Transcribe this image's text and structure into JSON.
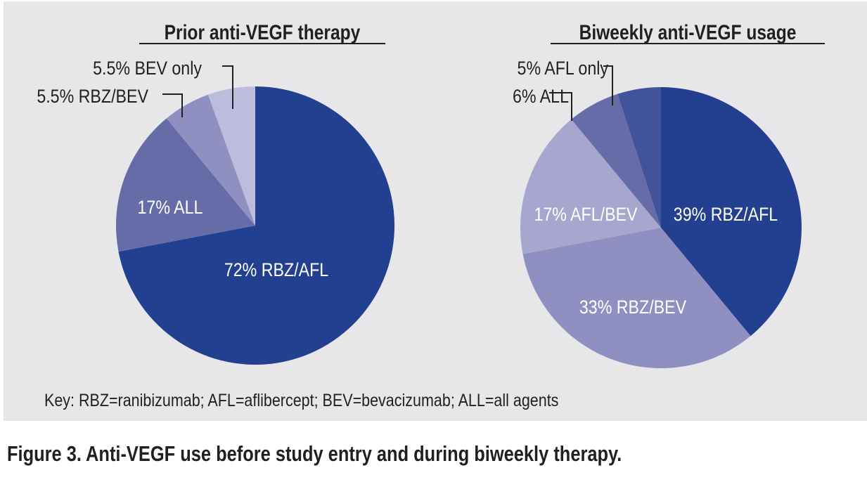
{
  "chart_data": [
    {
      "type": "pie",
      "title": "Prior anti-VEGF therapy",
      "slices": [
        {
          "label": "72% RBZ/AFL",
          "value": 72,
          "color": "#233f8f",
          "label_position": "inside"
        },
        {
          "label": "17% ALL",
          "value": 17,
          "color": "#666ca8",
          "label_position": "inside"
        },
        {
          "label": "5.5% RBZ/BEV",
          "value": 5.5,
          "color": "#908fc2",
          "label_position": "callout"
        },
        {
          "label": "5.5% BEV only",
          "value": 5.5,
          "color": "#bcbcdc",
          "label_position": "callout"
        }
      ]
    },
    {
      "type": "pie",
      "title": "Biweekly anti-VEGF usage",
      "slices": [
        {
          "label": "39% RBZ/AFL",
          "value": 39,
          "color": "#233f8f",
          "label_position": "inside"
        },
        {
          "label": "33% RBZ/BEV",
          "value": 33,
          "color": "#908fc2",
          "label_position": "inside"
        },
        {
          "label": "17% AFL/BEV",
          "value": 17,
          "color": "#a7a6cf",
          "label_position": "inside"
        },
        {
          "label": "6% ALL",
          "value": 6,
          "color": "#666ca8",
          "label_position": "callout"
        },
        {
          "label": "5% AFL only",
          "value": 5,
          "color": "#41539a",
          "label_position": "callout"
        }
      ]
    }
  ],
  "key": "Key: RBZ=ranibizumab; AFL=aflibercept; BEV=bevacizumab; ALL=all agents",
  "caption": "Figure 3. Anti-VEGF use before study entry and during biweekly therapy."
}
